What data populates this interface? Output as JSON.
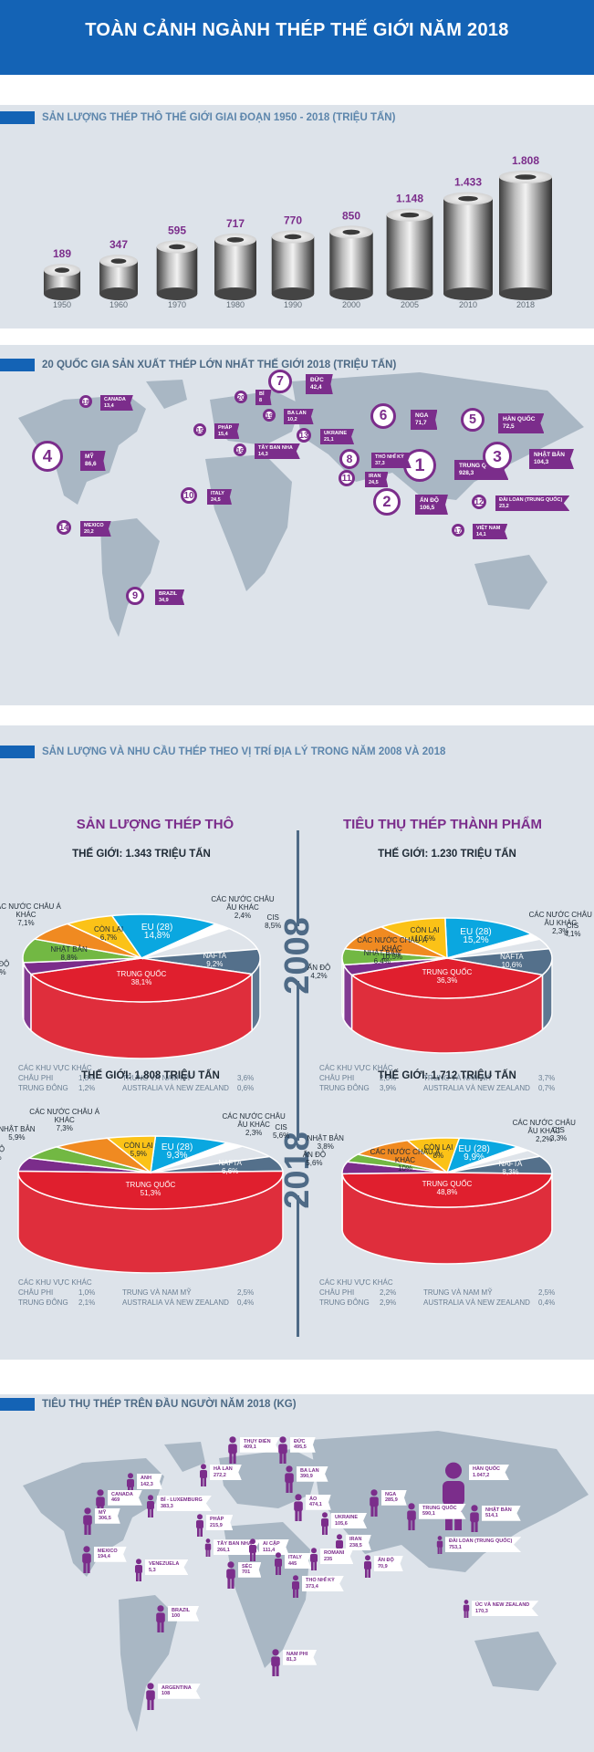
{
  "header": {
    "title": "TOÀN CẢNH NGÀNH THÉP THẾ GIỚI NĂM 2018"
  },
  "production": {
    "title": "SẢN LƯỢNG THÉP THÔ THẾ GIỚI GIAI ĐOẠN 1950 - 2018 (TRIỆU TẤN)",
    "chart_data": {
      "type": "bar",
      "categories": [
        "1950",
        "1960",
        "1970",
        "1980",
        "1990",
        "2000",
        "2005",
        "2010",
        "2018"
      ],
      "values": [
        189,
        347,
        595,
        717,
        770,
        850,
        1148,
        1433,
        1808
      ],
      "value_labels": [
        "189",
        "347",
        "595",
        "717",
        "770",
        "850",
        "1.148",
        "1.433",
        "1.808"
      ],
      "title": "SẢN LƯỢNG THÉP THÔ THẾ GIỚI GIAI ĐOẠN 1950 - 2018 (TRIỆU TẤN)",
      "ylim": [
        0,
        1808
      ]
    }
  },
  "producers": {
    "title": "20 QUỐC GIA SẢN XUẤT THÉP LỚN NHẤT THẾ GIỚI 2018 (TRIỆU TẤN)",
    "items": [
      {
        "rank": "1",
        "name": "TRUNG QUỐC",
        "value": "928,3"
      },
      {
        "rank": "2",
        "name": "ẤN ĐỘ",
        "value": "106,5"
      },
      {
        "rank": "3",
        "name": "NHẬT BẢN",
        "value": "104,3"
      },
      {
        "rank": "4",
        "name": "MỸ",
        "value": "86,6"
      },
      {
        "rank": "5",
        "name": "HÀN QUỐC",
        "value": "72,5"
      },
      {
        "rank": "6",
        "name": "NGA",
        "value": "71,7"
      },
      {
        "rank": "7",
        "name": "ĐỨC",
        "value": "42,4"
      },
      {
        "rank": "8",
        "name": "THỔ NHĨ KỲ",
        "value": "37,3"
      },
      {
        "rank": "9",
        "name": "BRAZIL",
        "value": "34,9"
      },
      {
        "rank": "10",
        "name": "ITALY",
        "value": "24,5"
      },
      {
        "rank": "11",
        "name": "IRAN",
        "value": "24,5"
      },
      {
        "rank": "12",
        "name": "ĐÀI LOAN (TRUNG QUỐC)",
        "value": "23,2"
      },
      {
        "rank": "13",
        "name": "UKRAINE",
        "value": "21,1"
      },
      {
        "rank": "14",
        "name": "MEXICO",
        "value": "20,2"
      },
      {
        "rank": "15",
        "name": "PHÁP",
        "value": "15,4"
      },
      {
        "rank": "16",
        "name": "TÂY BAN NHA",
        "value": "14,3"
      },
      {
        "rank": "17",
        "name": "VIỆT NAM",
        "value": "14,1"
      },
      {
        "rank": "18",
        "name": "CANADA",
        "value": "13,4"
      },
      {
        "rank": "19",
        "name": "BA LAN",
        "value": "10,2"
      },
      {
        "rank": "20",
        "name": "BỈ",
        "value": "8"
      }
    ]
  },
  "regional": {
    "title": "SẢN LƯỢNG VÀ NHU CẦU THÉP THEO VỊ TRÍ ĐỊA LÝ TRONG NĂM 2008 VÀ 2018",
    "col_left": "SẢN LƯỢNG THÉP THÔ",
    "col_right": "TIÊU THỤ THÉP THÀNH PHẨM",
    "year_2008": "2008",
    "year_2018": "2018",
    "others_label": "CÁC KHU VỰC KHÁC",
    "chart_data": [
      {
        "type": "pie",
        "title": "THẾ GIỚI: 1.343 TRIỆU TẤN",
        "slices": [
          {
            "label": "EU (28)",
            "pct": "14,8%",
            "value": 14.8,
            "color": "#0aa7e0"
          },
          {
            "label": "CÁC NƯỚC CHÂU ÂU KHÁC",
            "pct": "2,4%",
            "value": 2.4,
            "color": "#ffffff"
          },
          {
            "label": "CIS",
            "pct": "8,5%",
            "value": 8.5,
            "color": "#dfe4ea"
          },
          {
            "label": "NAFTA",
            "pct": "9,2%",
            "value": 9.2,
            "color": "#54708b"
          },
          {
            "label": "TRUNG QUỐC",
            "pct": "38,1%",
            "value": 38.1,
            "color": "#e01f2e"
          },
          {
            "label": "ẤN ĐỘ",
            "pct": "4,3%",
            "value": 4.3,
            "color": "#7b2d8b"
          },
          {
            "label": "NHẬT BẢN",
            "pct": "8,8%",
            "value": 8.8,
            "color": "#72b843"
          },
          {
            "label": "CÁC NƯỚC CHÂU Á KHÁC",
            "pct": "7,1%",
            "value": 7.1,
            "color": "#f08a21"
          },
          {
            "label": "CÒN LẠI",
            "pct": "6,7%",
            "value": 6.7,
            "color": "#fbc217"
          }
        ],
        "others": [
          [
            "CHÂU PHI",
            "1,3%",
            "TRUNG VÀ NAM MỸ",
            "3,6%"
          ],
          [
            "TRUNG ĐÔNG",
            "1,2%",
            "AUSTRALIA VÀ NEW ZEALAND",
            "0,6%"
          ]
        ]
      },
      {
        "type": "pie",
        "title": "THẾ GIỚI: 1.230 TRIỆU TẤN",
        "slices": [
          {
            "label": "EU (28)",
            "pct": "15,2%",
            "value": 15.2,
            "color": "#0aa7e0"
          },
          {
            "label": "CÁC NƯỚC CHÂU ÂU KHÁC",
            "pct": "2,3%",
            "value": 2.3,
            "color": "#ffffff"
          },
          {
            "label": "CIS",
            "pct": "4,1%",
            "value": 4.1,
            "color": "#dfe4ea"
          },
          {
            "label": "NAFTA",
            "pct": "10,6%",
            "value": 10.6,
            "color": "#54708b"
          },
          {
            "label": "TRUNG QUỐC",
            "pct": "36,3%",
            "value": 36.3,
            "color": "#e01f2e"
          },
          {
            "label": "ẤN ĐỘ",
            "pct": "4,2%",
            "value": 4.2,
            "color": "#7b2d8b"
          },
          {
            "label": "NHẬT BẢN",
            "pct": "6,4%",
            "value": 6.4,
            "color": "#72b843"
          },
          {
            "label": "CÁC NƯỚC CHÂU Á KHÁC",
            "pct": "10,5%",
            "value": 10.5,
            "color": "#f08a21"
          },
          {
            "label": "CÒN LẠI",
            "pct": "10,5%",
            "value": 10.5,
            "color": "#fbc217"
          }
        ],
        "others": [
          [
            "CHÂU PHI",
            "2,3%",
            "TRUNG VÀ NAM MỸ",
            "3,7%"
          ],
          [
            "TRUNG ĐÔNG",
            "3,9%",
            "AUSTRALIA VÀ NEW ZEALAND",
            "0,7%"
          ]
        ]
      },
      {
        "type": "pie",
        "title": "THẾ GIỚI: 1.808 TRIỆU TẤN",
        "slices": [
          {
            "label": "EU (28)",
            "pct": "9,3%",
            "value": 9.3,
            "color": "#0aa7e0"
          },
          {
            "label": "CÁC NƯỚC CHÂU ÂU KHÁC",
            "pct": "2,3%",
            "value": 2.3,
            "color": "#ffffff"
          },
          {
            "label": "CIS",
            "pct": "5,6%",
            "value": 5.6,
            "color": "#dfe4ea"
          },
          {
            "label": "NAFTA",
            "pct": "6,6%",
            "value": 6.6,
            "color": "#54708b"
          },
          {
            "label": "TRUNG QUỐC",
            "pct": "51,3%",
            "value": 51.3,
            "color": "#e01f2e"
          },
          {
            "label": "ẤN ĐỘ",
            "pct": "5,9%",
            "value": 5.9,
            "color": "#7b2d8b"
          },
          {
            "label": "NHẬT BẢN",
            "pct": "5,9%",
            "value": 5.9,
            "color": "#72b843"
          },
          {
            "label": "CÁC NƯỚC CHÂU Á KHÁC",
            "pct": "7,3%",
            "value": 7.3,
            "color": "#f08a21"
          },
          {
            "label": "CÒN LẠI",
            "pct": "5,9%",
            "value": 5.9,
            "color": "#fbc217"
          }
        ],
        "others": [
          [
            "CHÂU PHI",
            "1,0%",
            "TRUNG VÀ NAM MỸ",
            "2,5%"
          ],
          [
            "TRUNG ĐÔNG",
            "2,1%",
            "AUSTRALIA VÀ NEW ZEALAND",
            "0,4%"
          ]
        ]
      },
      {
        "type": "pie",
        "title": "THẾ GIỚI: 1,712 TRIỆU TẤN",
        "slices": [
          {
            "label": "EU (28)",
            "pct": "9,9%",
            "value": 9.9,
            "color": "#0aa7e0"
          },
          {
            "label": "CÁC NƯỚC CHÂU ÂU KHÁC",
            "pct": "2,2%",
            "value": 2.2,
            "color": "#ffffff"
          },
          {
            "label": "CIS",
            "pct": "3,3%",
            "value": 3.3,
            "color": "#dfe4ea"
          },
          {
            "label": "NAFTA",
            "pct": "8,3%",
            "value": 8.3,
            "color": "#54708b"
          },
          {
            "label": "TRUNG QUỐC",
            "pct": "48,8%",
            "value": 48.8,
            "color": "#e01f2e"
          },
          {
            "label": "ẤN ĐỘ",
            "pct": "5,6%",
            "value": 5.6,
            "color": "#7b2d8b"
          },
          {
            "label": "NHẬT BẢN",
            "pct": "3,8%",
            "value": 3.8,
            "color": "#72b843"
          },
          {
            "label": "CÁC NƯỚC CHÂU Á KHÁC",
            "pct": "10%",
            "value": 10,
            "color": "#f08a21"
          },
          {
            "label": "CÒN LẠI",
            "pct": "8%",
            "value": 8,
            "color": "#fbc217"
          }
        ],
        "others": [
          [
            "CHÂU PHI",
            "2,2%",
            "TRUNG VÀ NAM MỸ",
            "2,5%"
          ],
          [
            "TRUNG ĐÔNG",
            "2,9%",
            "AUSTRALIA VÀ NEW ZEALAND",
            "0,4%"
          ]
        ]
      }
    ]
  },
  "percapita": {
    "title": "TIÊU THỤ THÉP TRÊN ĐẦU NGƯỜI NĂM 2018 (KG)",
    "items": [
      {
        "name": "THỤY ĐIỂN",
        "value": "409,1"
      },
      {
        "name": "ĐỨC",
        "value": "495,5"
      },
      {
        "name": "HÀ LAN",
        "value": "272,2"
      },
      {
        "name": "BA LAN",
        "value": "390,9"
      },
      {
        "name": "ANH",
        "value": "142,3"
      },
      {
        "name": "CANADA",
        "value": "469"
      },
      {
        "name": "BỈ - LUXEMBURG",
        "value": "383,3"
      },
      {
        "name": "NGA",
        "value": "285,9"
      },
      {
        "name": "HÀN QUỐC",
        "value": "1.047,2"
      },
      {
        "name": "MỸ",
        "value": "306,5"
      },
      {
        "name": "PHÁP",
        "value": "215,9"
      },
      {
        "name": "ÁO",
        "value": "474,1"
      },
      {
        "name": "TRUNG QUỐC",
        "value": "590,1"
      },
      {
        "name": "NHẬT BẢN",
        "value": "514,1"
      },
      {
        "name": "UKRAINE",
        "value": "105,6"
      },
      {
        "name": "TÂY BAN NHA",
        "value": "266,1"
      },
      {
        "name": "IRAN",
        "value": "238,5"
      },
      {
        "name": "ĐÀI LOAN (TRUNG QUỐC)",
        "value": "753,1"
      },
      {
        "name": "AI CẬP",
        "value": "111,4"
      },
      {
        "name": "MEXICO",
        "value": "194,4"
      },
      {
        "name": "ITALY",
        "value": "445"
      },
      {
        "name": "ROMANI",
        "value": "235"
      },
      {
        "name": "ẤN ĐỘ",
        "value": "70,9"
      },
      {
        "name": "VENEZUELA",
        "value": "5,3"
      },
      {
        "name": "SÉC",
        "value": "701"
      },
      {
        "name": "THỔ NHĨ KỲ",
        "value": "373,4"
      },
      {
        "name": "BRAZIL",
        "value": "100"
      },
      {
        "name": "ÚC VÀ NEW ZEALAND",
        "value": "170,3"
      },
      {
        "name": "NAM PHI",
        "value": "81,3"
      },
      {
        "name": "ARGENTINA",
        "value": "108"
      }
    ]
  }
}
